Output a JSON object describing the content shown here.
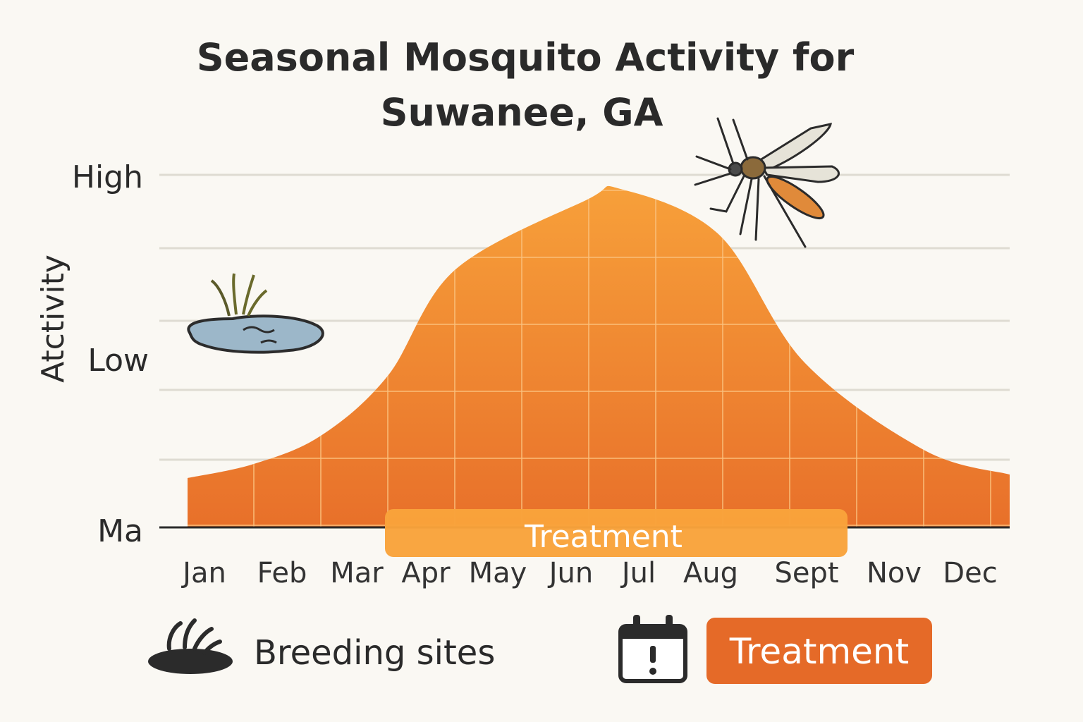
{
  "chart_data": {
    "type": "area",
    "title_lines": [
      "Seasonal Mosquito Activity for",
      "Suwanee, GA"
    ],
    "ylabel": "Atctivity",
    "y_tick_labels": [
      "High",
      "Low",
      "Ma"
    ],
    "categories": [
      "Jan",
      "Feb",
      "Mar",
      "Apr",
      "May",
      "Jun",
      "Jul",
      "Aug",
      "Sept",
      "Nov",
      "Dec"
    ],
    "curve": [
      {
        "x": "Jan",
        "y": 0.14
      },
      {
        "x": "Feb",
        "y": 0.18
      },
      {
        "x": "Mar",
        "y": 0.26
      },
      {
        "x": "Apr",
        "y": 0.43
      },
      {
        "x": "May",
        "y": 0.73
      },
      {
        "x": "Jun",
        "y": 0.93
      },
      {
        "x": "Jul",
        "y": 0.96
      },
      {
        "x": "Aug",
        "y": 0.83
      },
      {
        "x": "Sept",
        "y": 0.47
      },
      {
        "x": "Nov",
        "y": 0.22
      },
      {
        "x": "Dec",
        "y": 0.15
      }
    ],
    "ylim": [
      0,
      1
    ],
    "grid": true,
    "treatment_window": {
      "label": "Treatment",
      "from": "Apr",
      "to": "Sept"
    },
    "legend": [
      {
        "label": "Breeding sites",
        "icon": "pond-grass-icon"
      },
      {
        "label": "Treatment",
        "icon": "calendar-alert-icon"
      }
    ]
  },
  "colors": {
    "area_top": "#f7a03a",
    "area_bottom": "#e8702a",
    "treatment_band": "#f9a33b",
    "legend_badge": "#e56a28",
    "grid": "#dedbd2",
    "axis": "#2b2b2b"
  }
}
